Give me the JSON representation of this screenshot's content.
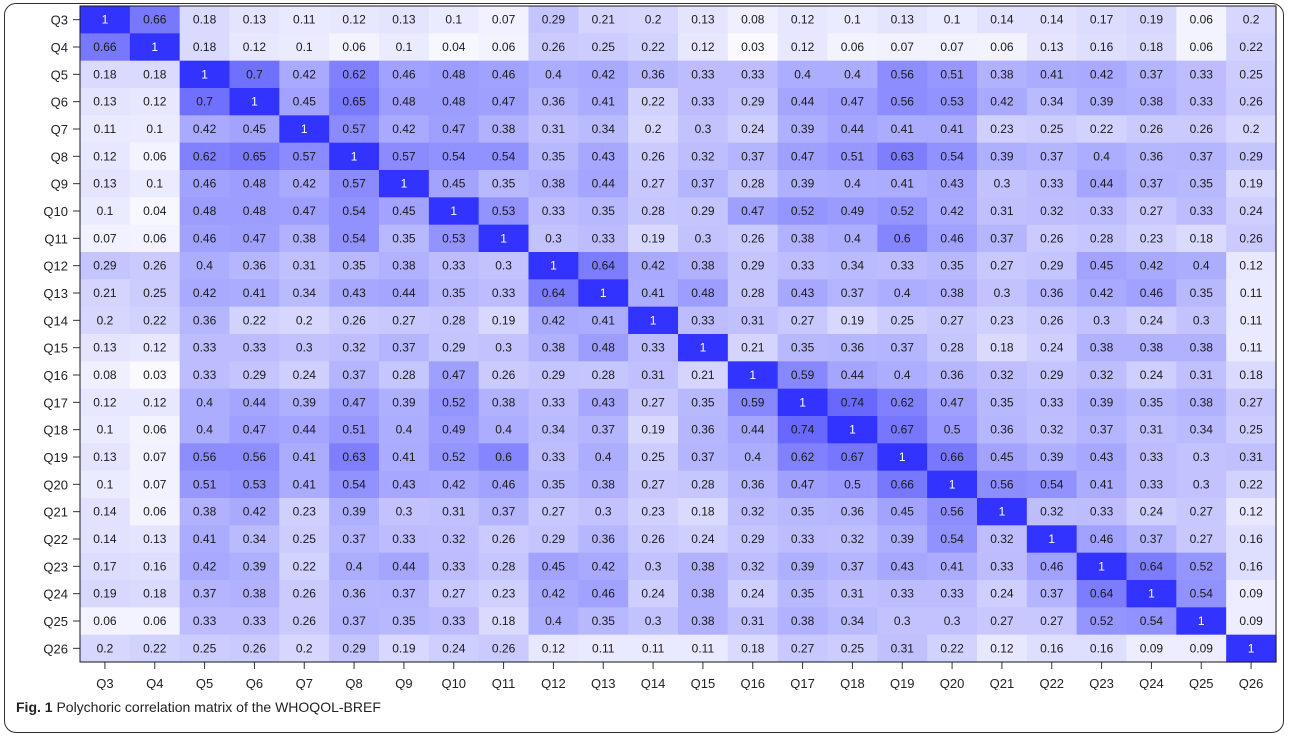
{
  "chart_data": {
    "type": "heatmap",
    "labels": [
      "Q3",
      "Q4",
      "Q5",
      "Q6",
      "Q7",
      "Q8",
      "Q9",
      "Q10",
      "Q11",
      "Q12",
      "Q13",
      "Q14",
      "Q15",
      "Q16",
      "Q17",
      "Q18",
      "Q19",
      "Q20",
      "Q21",
      "Q22",
      "Q23",
      "Q24",
      "Q25",
      "Q26"
    ],
    "matrix": [
      [
        "1",
        "0.66",
        "0.18",
        "0.13",
        "0.11",
        "0.12",
        "0.13",
        "0.1",
        "0.07",
        "0.29",
        "0.21",
        "0.2",
        "0.13",
        "0.08",
        "0.12",
        "0.1",
        "0.13",
        "0.1",
        "0.14",
        "0.14",
        "0.17",
        "0.19",
        "0.06",
        "0.2"
      ],
      [
        "0.66",
        "1",
        "0.18",
        "0.12",
        "0.1",
        "0.06",
        "0.1",
        "0.04",
        "0.06",
        "0.26",
        "0.25",
        "0.22",
        "0.12",
        "0.03",
        "0.12",
        "0.06",
        "0.07",
        "0.07",
        "0.06",
        "0.13",
        "0.16",
        "0.18",
        "0.06",
        "0.22"
      ],
      [
        "0.18",
        "0.18",
        "1",
        "0.7",
        "0.42",
        "0.62",
        "0.46",
        "0.48",
        "0.46",
        "0.4",
        "0.42",
        "0.36",
        "0.33",
        "0.33",
        "0.4",
        "0.4",
        "0.56",
        "0.51",
        "0.38",
        "0.41",
        "0.42",
        "0.37",
        "0.33",
        "0.25"
      ],
      [
        "0.13",
        "0.12",
        "0.7",
        "1",
        "0.45",
        "0.65",
        "0.48",
        "0.48",
        "0.47",
        "0.36",
        "0.41",
        "0.22",
        "0.33",
        "0.29",
        "0.44",
        "0.47",
        "0.56",
        "0.53",
        "0.42",
        "0.34",
        "0.39",
        "0.38",
        "0.33",
        "0.26"
      ],
      [
        "0.11",
        "0.1",
        "0.42",
        "0.45",
        "1",
        "0.57",
        "0.42",
        "0.47",
        "0.38",
        "0.31",
        "0.34",
        "0.2",
        "0.3",
        "0.24",
        "0.39",
        "0.44",
        "0.41",
        "0.41",
        "0.23",
        "0.25",
        "0.22",
        "0.26",
        "0.26",
        "0.2"
      ],
      [
        "0.12",
        "0.06",
        "0.62",
        "0.65",
        "0.57",
        "1",
        "0.57",
        "0.54",
        "0.54",
        "0.35",
        "0.43",
        "0.26",
        "0.32",
        "0.37",
        "0.47",
        "0.51",
        "0.63",
        "0.54",
        "0.39",
        "0.37",
        "0.4",
        "0.36",
        "0.37",
        "0.29"
      ],
      [
        "0.13",
        "0.1",
        "0.46",
        "0.48",
        "0.42",
        "0.57",
        "1",
        "0.45",
        "0.35",
        "0.38",
        "0.44",
        "0.27",
        "0.37",
        "0.28",
        "0.39",
        "0.4",
        "0.41",
        "0.43",
        "0.3",
        "0.33",
        "0.44",
        "0.37",
        "0.35",
        "0.19"
      ],
      [
        "0.1",
        "0.04",
        "0.48",
        "0.48",
        "0.47",
        "0.54",
        "0.45",
        "1",
        "0.53",
        "0.33",
        "0.35",
        "0.28",
        "0.29",
        "0.47",
        "0.52",
        "0.49",
        "0.52",
        "0.42",
        "0.31",
        "0.32",
        "0.33",
        "0.27",
        "0.33",
        "0.24"
      ],
      [
        "0.07",
        "0.06",
        "0.46",
        "0.47",
        "0.38",
        "0.54",
        "0.35",
        "0.53",
        "1",
        "0.3",
        "0.33",
        "0.19",
        "0.3",
        "0.26",
        "0.38",
        "0.4",
        "0.6",
        "0.46",
        "0.37",
        "0.26",
        "0.28",
        "0.23",
        "0.18",
        "0.26"
      ],
      [
        "0.29",
        "0.26",
        "0.4",
        "0.36",
        "0.31",
        "0.35",
        "0.38",
        "0.33",
        "0.3",
        "1",
        "0.64",
        "0.42",
        "0.38",
        "0.29",
        "0.33",
        "0.34",
        "0.33",
        "0.35",
        "0.27",
        "0.29",
        "0.45",
        "0.42",
        "0.4",
        "0.12"
      ],
      [
        "0.21",
        "0.25",
        "0.42",
        "0.41",
        "0.34",
        "0.43",
        "0.44",
        "0.35",
        "0.33",
        "0.64",
        "1",
        "0.41",
        "0.48",
        "0.28",
        "0.43",
        "0.37",
        "0.4",
        "0.38",
        "0.3",
        "0.36",
        "0.42",
        "0.46",
        "0.35",
        "0.11"
      ],
      [
        "0.2",
        "0.22",
        "0.36",
        "0.22",
        "0.2",
        "0.26",
        "0.27",
        "0.28",
        "0.19",
        "0.42",
        "0.41",
        "1",
        "0.33",
        "0.31",
        "0.27",
        "0.19",
        "0.25",
        "0.27",
        "0.23",
        "0.26",
        "0.3",
        "0.24",
        "0.3",
        "0.11"
      ],
      [
        "0.13",
        "0.12",
        "0.33",
        "0.33",
        "0.3",
        "0.32",
        "0.37",
        "0.29",
        "0.3",
        "0.38",
        "0.48",
        "0.33",
        "1",
        "0.21",
        "0.35",
        "0.36",
        "0.37",
        "0.28",
        "0.18",
        "0.24",
        "0.38",
        "0.38",
        "0.38",
        "0.11"
      ],
      [
        "0.08",
        "0.03",
        "0.33",
        "0.29",
        "0.24",
        "0.37",
        "0.28",
        "0.47",
        "0.26",
        "0.29",
        "0.28",
        "0.31",
        "0.21",
        "1",
        "0.59",
        "0.44",
        "0.4",
        "0.36",
        "0.32",
        "0.29",
        "0.32",
        "0.24",
        "0.31",
        "0.18"
      ],
      [
        "0.12",
        "0.12",
        "0.4",
        "0.44",
        "0.39",
        "0.47",
        "0.39",
        "0.52",
        "0.38",
        "0.33",
        "0.43",
        "0.27",
        "0.35",
        "0.59",
        "1",
        "0.74",
        "0.62",
        "0.47",
        "0.35",
        "0.33",
        "0.39",
        "0.35",
        "0.38",
        "0.27"
      ],
      [
        "0.1",
        "0.06",
        "0.4",
        "0.47",
        "0.44",
        "0.51",
        "0.4",
        "0.49",
        "0.4",
        "0.34",
        "0.37",
        "0.19",
        "0.36",
        "0.44",
        "0.74",
        "1",
        "0.67",
        "0.5",
        "0.36",
        "0.32",
        "0.37",
        "0.31",
        "0.34",
        "0.25"
      ],
      [
        "0.13",
        "0.07",
        "0.56",
        "0.56",
        "0.41",
        "0.63",
        "0.41",
        "0.52",
        "0.6",
        "0.33",
        "0.4",
        "0.25",
        "0.37",
        "0.4",
        "0.62",
        "0.67",
        "1",
        "0.66",
        "0.45",
        "0.39",
        "0.43",
        "0.33",
        "0.3",
        "0.31"
      ],
      [
        "0.1",
        "0.07",
        "0.51",
        "0.53",
        "0.41",
        "0.54",
        "0.43",
        "0.42",
        "0.46",
        "0.35",
        "0.38",
        "0.27",
        "0.28",
        "0.36",
        "0.47",
        "0.5",
        "0.66",
        "1",
        "0.56",
        "0.54",
        "0.41",
        "0.33",
        "0.3",
        "0.22"
      ],
      [
        "0.14",
        "0.06",
        "0.38",
        "0.42",
        "0.23",
        "0.39",
        "0.3",
        "0.31",
        "0.37",
        "0.27",
        "0.3",
        "0.23",
        "0.18",
        "0.32",
        "0.35",
        "0.36",
        "0.45",
        "0.56",
        "1",
        "0.32",
        "0.33",
        "0.24",
        "0.27",
        "0.12"
      ],
      [
        "0.14",
        "0.13",
        "0.41",
        "0.34",
        "0.25",
        "0.37",
        "0.33",
        "0.32",
        "0.26",
        "0.29",
        "0.36",
        "0.26",
        "0.24",
        "0.29",
        "0.33",
        "0.32",
        "0.39",
        "0.54",
        "0.32",
        "1",
        "0.46",
        "0.37",
        "0.27",
        "0.16"
      ],
      [
        "0.17",
        "0.16",
        "0.42",
        "0.39",
        "0.22",
        "0.4",
        "0.44",
        "0.33",
        "0.28",
        "0.45",
        "0.42",
        "0.3",
        "0.38",
        "0.32",
        "0.39",
        "0.37",
        "0.43",
        "0.41",
        "0.33",
        "0.46",
        "1",
        "0.64",
        "0.52",
        "0.16"
      ],
      [
        "0.19",
        "0.18",
        "0.37",
        "0.38",
        "0.26",
        "0.36",
        "0.37",
        "0.27",
        "0.23",
        "0.42",
        "0.46",
        "0.24",
        "0.38",
        "0.24",
        "0.35",
        "0.31",
        "0.33",
        "0.33",
        "0.24",
        "0.37",
        "0.64",
        "1",
        "0.54",
        "0.09"
      ],
      [
        "0.06",
        "0.06",
        "0.33",
        "0.33",
        "0.26",
        "0.37",
        "0.35",
        "0.33",
        "0.18",
        "0.4",
        "0.35",
        "0.3",
        "0.38",
        "0.31",
        "0.38",
        "0.34",
        "0.3",
        "0.3",
        "0.27",
        "0.27",
        "0.52",
        "0.54",
        "1",
        "0.09"
      ],
      [
        "0.2",
        "0.22",
        "0.25",
        "0.26",
        "0.2",
        "0.29",
        "0.19",
        "0.24",
        "0.26",
        "0.12",
        "0.11",
        "0.11",
        "0.11",
        "0.18",
        "0.27",
        "0.25",
        "0.31",
        "0.22",
        "0.12",
        "0.16",
        "0.16",
        "0.09",
        "0.09",
        "1"
      ]
    ],
    "color_low": "#ffffff",
    "color_high": "#3333ff",
    "grid": false,
    "legend": "none"
  },
  "caption": {
    "label": "Fig. 1",
    "text": " Polychoric correlation matrix of the WHOQOL-BREF"
  }
}
